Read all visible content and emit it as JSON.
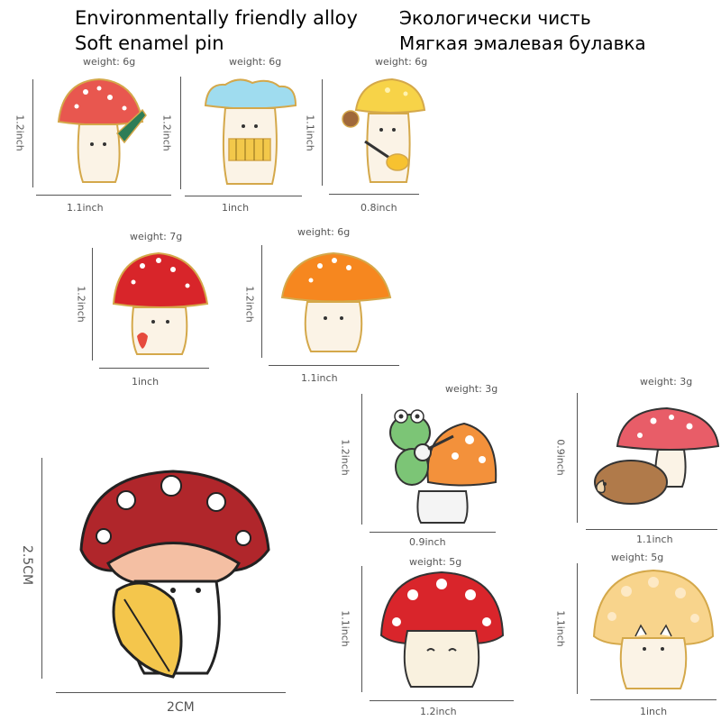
{
  "header": {
    "en_line1": "Environmentally friendly alloy",
    "en_line2": "Soft enamel pin",
    "ru_line1": "Экологически чисть",
    "ru_line2": "Мягкая эмалевая булавка"
  },
  "pins": [
    {
      "weight": "weight: 6g",
      "height": "1.2inch",
      "width": "1.1inch",
      "icon": "mushroom-knife-icon",
      "cap_color": "#e8574f"
    },
    {
      "weight": "weight: 6g",
      "height": "1.2inch",
      "width": "1inch",
      "icon": "mushroom-accordion-icon",
      "cap_color": "#9fdcef"
    },
    {
      "weight": "weight: 6g",
      "height": "1.1inch",
      "width": "0.8inch",
      "icon": "mushroom-guitar-icon",
      "cap_color": "#f7d348"
    },
    {
      "weight": "weight: 7g",
      "height": "1.2inch",
      "width": "1inch",
      "icon": "mushroom-strawberry-icon",
      "cap_color": "#d8252a"
    },
    {
      "weight": "weight: 6g",
      "height": "1.2inch",
      "width": "1.1inch",
      "icon": "mushroom-orange-icon",
      "cap_color": "#f6871f"
    },
    {
      "weight": "weight: 3g",
      "height": "1.2inch",
      "width": "0.9inch",
      "icon": "frog-banjo-mushroom-icon",
      "cap_color": "#f3913b"
    },
    {
      "weight": "weight: 3g",
      "height": "0.9inch",
      "width": "1.1inch",
      "icon": "hedgehog-mushroom-icon",
      "cap_color": "#e85d68"
    },
    {
      "weight": "",
      "height": "2.5CM",
      "width": "2CM",
      "icon": "mushroom-leaf-icon",
      "cap_color": "#b0262b"
    },
    {
      "weight": "weight: 5g",
      "height": "1.1inch",
      "width": "1.2inch",
      "icon": "mushroom-happy-icon",
      "cap_color": "#d9252b"
    },
    {
      "weight": "weight: 5g",
      "height": "1.1inch",
      "width": "1inch",
      "icon": "mushroom-cat-icon",
      "cap_color": "#f8d48c"
    }
  ]
}
